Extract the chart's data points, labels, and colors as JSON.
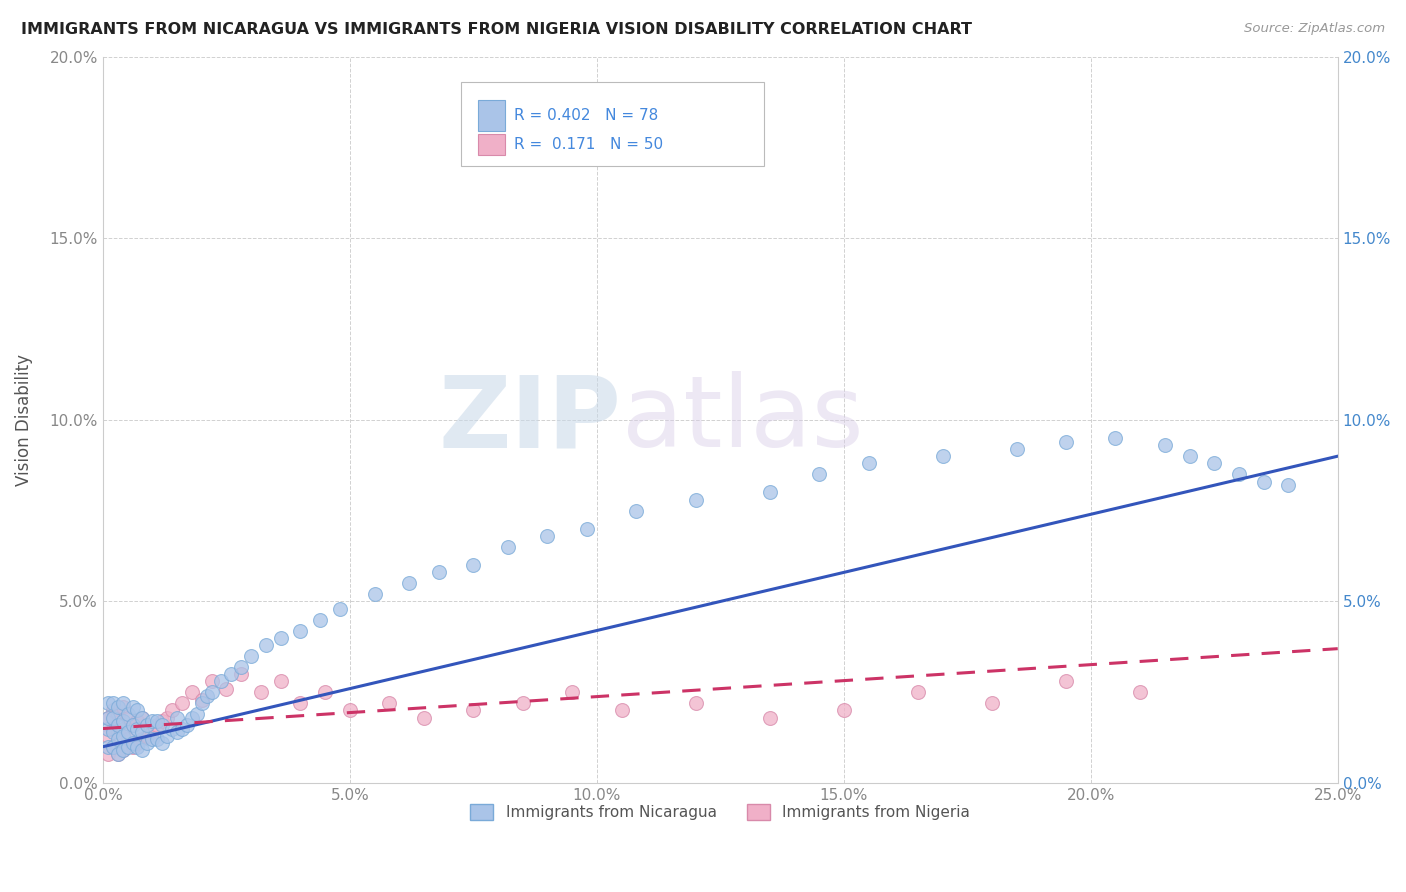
{
  "title": "IMMIGRANTS FROM NICARAGUA VS IMMIGRANTS FROM NIGERIA VISION DISABILITY CORRELATION CHART",
  "source": "Source: ZipAtlas.com",
  "ylabel": "Vision Disability",
  "xlim": [
    0.0,
    0.25
  ],
  "ylim": [
    0.0,
    0.2
  ],
  "xticks": [
    0.0,
    0.05,
    0.1,
    0.15,
    0.2,
    0.25
  ],
  "yticks": [
    0.0,
    0.05,
    0.1,
    0.15,
    0.2
  ],
  "xtick_labels": [
    "0.0%",
    "5.0%",
    "10.0%",
    "15.0%",
    "20.0%",
    "25.0%"
  ],
  "ytick_labels": [
    "0.0%",
    "5.0%",
    "10.0%",
    "15.0%",
    "20.0%"
  ],
  "nicaragua_color": "#aac4e8",
  "nicaragua_edge": "#7aaad8",
  "nigeria_color": "#f0b0c8",
  "nigeria_edge": "#d88aaa",
  "nic_line_color": "#3355bb",
  "nig_line_color": "#cc3366",
  "nicaragua_r": 0.402,
  "nicaragua_n": 78,
  "nigeria_r": 0.171,
  "nigeria_n": 50,
  "legend_label_1": "Immigrants from Nicaragua",
  "legend_label_2": "Immigrants from Nigeria",
  "watermark_zip": "ZIP",
  "watermark_atlas": "atlas",
  "right_tick_color": "#4488cc",
  "nicaragua_scatter_x": [
    0.001,
    0.001,
    0.001,
    0.001,
    0.002,
    0.002,
    0.002,
    0.002,
    0.003,
    0.003,
    0.003,
    0.003,
    0.004,
    0.004,
    0.004,
    0.004,
    0.005,
    0.005,
    0.005,
    0.006,
    0.006,
    0.006,
    0.007,
    0.007,
    0.007,
    0.008,
    0.008,
    0.008,
    0.009,
    0.009,
    0.01,
    0.01,
    0.011,
    0.011,
    0.012,
    0.012,
    0.013,
    0.014,
    0.015,
    0.015,
    0.016,
    0.017,
    0.018,
    0.019,
    0.02,
    0.021,
    0.022,
    0.024,
    0.026,
    0.028,
    0.03,
    0.033,
    0.036,
    0.04,
    0.044,
    0.048,
    0.055,
    0.062,
    0.068,
    0.075,
    0.082,
    0.09,
    0.098,
    0.108,
    0.12,
    0.135,
    0.145,
    0.155,
    0.17,
    0.185,
    0.195,
    0.205,
    0.215,
    0.22,
    0.225,
    0.23,
    0.235,
    0.24
  ],
  "nicaragua_scatter_y": [
    0.01,
    0.015,
    0.018,
    0.022,
    0.01,
    0.014,
    0.018,
    0.022,
    0.008,
    0.012,
    0.016,
    0.021,
    0.009,
    0.013,
    0.017,
    0.022,
    0.01,
    0.014,
    0.019,
    0.011,
    0.016,
    0.021,
    0.01,
    0.015,
    0.02,
    0.009,
    0.014,
    0.018,
    0.011,
    0.016,
    0.012,
    0.017,
    0.012,
    0.017,
    0.011,
    0.016,
    0.013,
    0.015,
    0.014,
    0.018,
    0.015,
    0.016,
    0.018,
    0.019,
    0.022,
    0.024,
    0.025,
    0.028,
    0.03,
    0.032,
    0.035,
    0.038,
    0.04,
    0.042,
    0.045,
    0.048,
    0.052,
    0.055,
    0.058,
    0.06,
    0.065,
    0.068,
    0.07,
    0.075,
    0.078,
    0.08,
    0.085,
    0.088,
    0.09,
    0.092,
    0.094,
    0.095,
    0.093,
    0.09,
    0.088,
    0.085,
    0.083,
    0.082
  ],
  "nigeria_scatter_x": [
    0.001,
    0.001,
    0.001,
    0.002,
    0.002,
    0.002,
    0.003,
    0.003,
    0.003,
    0.004,
    0.004,
    0.004,
    0.005,
    0.005,
    0.006,
    0.006,
    0.007,
    0.007,
    0.008,
    0.008,
    0.009,
    0.01,
    0.011,
    0.012,
    0.013,
    0.014,
    0.016,
    0.018,
    0.02,
    0.022,
    0.025,
    0.028,
    0.032,
    0.036,
    0.04,
    0.045,
    0.05,
    0.058,
    0.065,
    0.075,
    0.085,
    0.095,
    0.105,
    0.12,
    0.135,
    0.15,
    0.165,
    0.18,
    0.195,
    0.21
  ],
  "nigeria_scatter_y": [
    0.008,
    0.013,
    0.018,
    0.01,
    0.015,
    0.02,
    0.008,
    0.014,
    0.019,
    0.009,
    0.015,
    0.021,
    0.012,
    0.018,
    0.01,
    0.016,
    0.011,
    0.017,
    0.012,
    0.018,
    0.013,
    0.014,
    0.016,
    0.017,
    0.018,
    0.02,
    0.022,
    0.025,
    0.023,
    0.028,
    0.026,
    0.03,
    0.025,
    0.028,
    0.022,
    0.025,
    0.02,
    0.022,
    0.018,
    0.02,
    0.022,
    0.025,
    0.02,
    0.022,
    0.018,
    0.02,
    0.025,
    0.022,
    0.028,
    0.025
  ],
  "nic_line_x0": 0.0,
  "nic_line_y0": 0.01,
  "nic_line_x1": 0.25,
  "nic_line_y1": 0.09,
  "nig_line_x0": 0.0,
  "nig_line_y0": 0.015,
  "nig_line_x1": 0.25,
  "nig_line_y1": 0.037
}
